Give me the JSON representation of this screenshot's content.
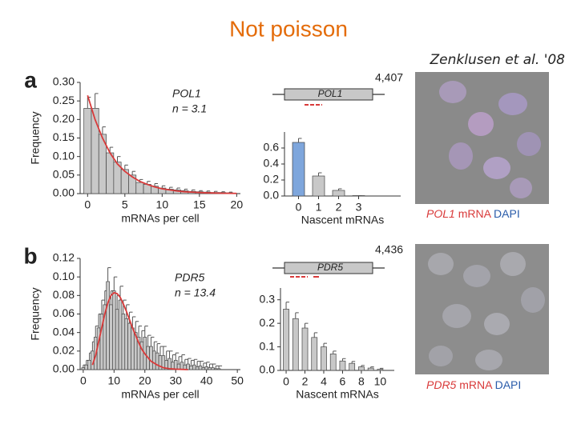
{
  "slide": {
    "title": "Not poisson",
    "citation": "Zenklusen et al. '08"
  },
  "panels": [
    {
      "label": "a",
      "gene_diagram": {
        "length": "4,407",
        "gene": "POL1"
      },
      "image_caption": {
        "gene": "POL1",
        "probe": "mRNA",
        "stain": "DAPI"
      }
    },
    {
      "label": "b",
      "gene_diagram": {
        "length": "4,436",
        "gene": "PDR5"
      },
      "image_caption": {
        "gene": "PDR5",
        "probe": "mRNA",
        "stain": "DAPI"
      }
    }
  ],
  "chart_data": [
    {
      "type": "histogram",
      "gene": "POL1",
      "mean_label": "n = 3.1",
      "xlabel": "mRNAs per cell",
      "ylabel": "Frequency",
      "bins": [
        -0.5,
        0.5,
        1.5,
        2.5,
        3.5,
        4.5,
        5.5,
        6.5,
        7.5,
        8.5,
        9.5,
        10.5,
        11.5,
        12.5,
        13.5,
        14.5,
        15.5,
        16.5,
        17.5,
        18.5,
        19.5
      ],
      "values": [
        0.23,
        0.23,
        0.16,
        0.11,
        0.085,
        0.065,
        0.05,
        0.03,
        0.025,
        0.02,
        0.015,
        0.012,
        0.01,
        0.008,
        0.006,
        0.005,
        0.004,
        0.003,
        0.003,
        0.002
      ],
      "errors": [
        0.03,
        0.04,
        0.02,
        0.015,
        0.015,
        0.012,
        0.01,
        0.008,
        0.008,
        0.007,
        0.006,
        0.005,
        0.005,
        0.004,
        0.004,
        0.003,
        0.003,
        0.003,
        0.002,
        0.002
      ],
      "color": "#c8c8c8",
      "fit": {
        "color": "#d93a3a",
        "x": [
          0,
          1,
          2,
          3,
          4,
          5,
          6,
          7,
          8,
          9,
          10,
          11,
          12,
          13,
          14,
          15,
          16,
          18,
          20
        ],
        "values": [
          0.265,
          0.2,
          0.15,
          0.11,
          0.08,
          0.06,
          0.045,
          0.033,
          0.025,
          0.018,
          0.013,
          0.01,
          0.007,
          0.005,
          0.004,
          0.003,
          0.002,
          0.001,
          0.0005
        ]
      },
      "xlim": [
        -1,
        20.5
      ],
      "ylim": [
        0,
        0.3
      ],
      "xticks": [
        0,
        5,
        10,
        15,
        20
      ],
      "yticks": [
        {
          "value": 0,
          "label": "0.00"
        },
        {
          "value": 0.05,
          "label": "0.05"
        },
        {
          "value": 0.1,
          "label": "0.10"
        },
        {
          "value": 0.15,
          "label": "0.15"
        },
        {
          "value": 0.2,
          "label": "0.20"
        },
        {
          "value": 0.25,
          "label": "0.25"
        },
        {
          "value": 0.3,
          "label": "0.30"
        }
      ]
    },
    {
      "type": "bar",
      "xlabel": "Nascent mRNAs",
      "x": [
        0,
        1,
        2,
        3
      ],
      "values": [
        0.67,
        0.25,
        0.07,
        0.005
      ],
      "errors": [
        0.05,
        0.04,
        0.02,
        0
      ],
      "colors": [
        "#7ea6dc",
        "#c8c8c8",
        "#c8c8c8",
        "#c8c8c8"
      ],
      "xlim": [
        -0.7,
        5.1
      ],
      "ylim": [
        0,
        0.8
      ],
      "xticks": [
        0,
        1,
        2,
        3
      ],
      "yticks": [
        {
          "value": 0,
          "label": "0.0"
        },
        0.2,
        0.4,
        0.6
      ]
    },
    {
      "type": "histogram",
      "gene": "PDR5",
      "mean_label": "n = 13.4",
      "xlabel": "mRNAs per cell",
      "ylabel": "Frequency",
      "bins": [
        -0.5,
        0.5,
        1.5,
        2.5,
        3.5,
        4.5,
        5.5,
        6.5,
        7.5,
        8.5,
        9.5,
        10.5,
        11.5,
        12.5,
        13.5,
        14.5,
        15.5,
        16.5,
        17.5,
        18.5,
        19.5,
        20.5,
        21.5,
        22.5,
        23.5,
        24.5,
        25.5,
        26.5,
        27.5,
        28.5,
        29.5,
        30.5,
        31.5,
        32.5,
        33.5,
        34.5,
        35.5,
        36.5,
        37.5,
        38.5,
        39.5,
        40.5,
        41.5,
        42.5,
        43.5,
        44.5
      ],
      "values": [
        0.002,
        0.005,
        0.01,
        0.02,
        0.035,
        0.045,
        0.06,
        0.07,
        0.095,
        0.07,
        0.085,
        0.065,
        0.075,
        0.06,
        0.055,
        0.05,
        0.045,
        0.04,
        0.035,
        0.03,
        0.035,
        0.025,
        0.025,
        0.02,
        0.018,
        0.015,
        0.015,
        0.01,
        0.012,
        0.008,
        0.01,
        0.006,
        0.008,
        0.005,
        0.006,
        0.004,
        0.005,
        0.003,
        0.004,
        0.002,
        0.003,
        0.002,
        0.002,
        0.001,
        0.001
      ],
      "errors": [
        0.003,
        0.005,
        0.008,
        0.01,
        0.012,
        0.015,
        0.015,
        0.015,
        0.015,
        0.015,
        0.015,
        0.015,
        0.015,
        0.015,
        0.015,
        0.012,
        0.012,
        0.012,
        0.012,
        0.012,
        0.012,
        0.012,
        0.01,
        0.01,
        0.01,
        0.01,
        0.01,
        0.01,
        0.008,
        0.008,
        0.008,
        0.008,
        0.008,
        0.006,
        0.006,
        0.006,
        0.006,
        0.006,
        0.005,
        0.005,
        0.005,
        0.004,
        0.004,
        0.003,
        0.003
      ],
      "color": "#c8c8c8",
      "fit": {
        "color": "#d93a3a",
        "x": [
          3,
          4,
          5,
          6,
          7,
          8,
          9,
          10,
          11,
          12,
          13,
          14,
          15,
          16,
          17,
          18,
          19,
          20,
          22,
          24,
          26,
          28,
          30,
          34
        ],
        "values": [
          0.005,
          0.015,
          0.03,
          0.045,
          0.06,
          0.072,
          0.08,
          0.083,
          0.082,
          0.078,
          0.071,
          0.063,
          0.054,
          0.045,
          0.037,
          0.029,
          0.022,
          0.017,
          0.009,
          0.005,
          0.002,
          0.001,
          0.0005,
          0
        ]
      },
      "xlim": [
        -1,
        51
      ],
      "ylim": [
        0,
        0.12
      ],
      "xticks": [
        0,
        10,
        20,
        30,
        40,
        50
      ],
      "yticks": [
        {
          "value": 0,
          "label": "0.00"
        },
        {
          "value": 0.02,
          "label": "0.02"
        },
        {
          "value": 0.04,
          "label": "0.04"
        },
        {
          "value": 0.06,
          "label": "0.06"
        },
        {
          "value": 0.08,
          "label": "0.08"
        },
        {
          "value": 0.1,
          "label": "0.10"
        },
        {
          "value": 0.12,
          "label": "0.12"
        }
      ]
    },
    {
      "type": "bar",
      "xlabel": "Nascent mRNAs",
      "x": [
        0,
        1,
        2,
        3,
        4,
        5,
        6,
        7,
        8,
        9,
        10
      ],
      "values": [
        0.26,
        0.22,
        0.18,
        0.14,
        0.1,
        0.07,
        0.04,
        0.03,
        0.015,
        0.01,
        0.005
      ],
      "errors": [
        0.03,
        0.025,
        0.02,
        0.02,
        0.015,
        0.012,
        0.01,
        0.008,
        0.006,
        0.005,
        0.004
      ],
      "color": "#c8c8c8",
      "xlim": [
        -0.6,
        11.5
      ],
      "ylim": [
        0,
        0.35
      ],
      "xticks": [
        0,
        2,
        4,
        6,
        8,
        10
      ],
      "yticks": [
        {
          "value": 0,
          "label": "0.0"
        },
        0.1,
        0.2,
        0.3
      ]
    }
  ]
}
